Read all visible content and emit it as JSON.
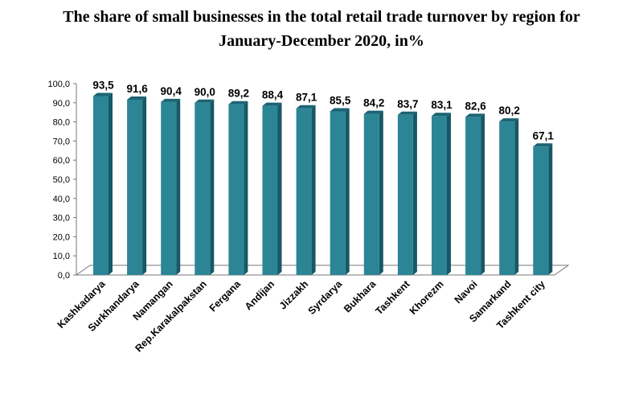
{
  "chart_data": {
    "type": "bar",
    "title_line1": "The share of small businesses in the total retail trade turnover by region for",
    "title_line2": "January-December 2020, in%",
    "categories": [
      "Kashkadarya",
      "Surkhandarya",
      "Namangan",
      "Rep.Karakalpakstan",
      "Fergana",
      "Andijan",
      "Jizzakh",
      "Syrdarya",
      "Bukhara",
      "Tashkent",
      "Khorezm",
      "Navoi",
      "Samarkand",
      "Tashkent city"
    ],
    "values": [
      93.5,
      91.6,
      90.4,
      90.0,
      89.2,
      88.4,
      87.1,
      85.5,
      84.2,
      83.7,
      83.1,
      82.6,
      80.2,
      67.1
    ],
    "value_labels": [
      "93,5",
      "91,6",
      "90,4",
      "90,0",
      "89,2",
      "88,4",
      "87,1",
      "85,5",
      "84,2",
      "83,7",
      "83,1",
      "82,6",
      "80,2",
      "67,1"
    ],
    "ylim": [
      0,
      100
    ],
    "yticks": [
      0,
      10,
      20,
      30,
      40,
      50,
      60,
      70,
      80,
      90,
      100
    ],
    "ytick_labels": [
      "0,0",
      "10,0",
      "20,0",
      "30,0",
      "40,0",
      "50,0",
      "60,0",
      "70,0",
      "80,0",
      "90,0",
      "100,0"
    ],
    "xlabel": "",
    "ylabel": "",
    "grid": false,
    "legend": "none",
    "colors": {
      "bar_front": "#2c8595",
      "bar_side": "#175866",
      "bar_top": "#1c6473",
      "floor": "#ffffff",
      "axis": "#777777"
    }
  }
}
